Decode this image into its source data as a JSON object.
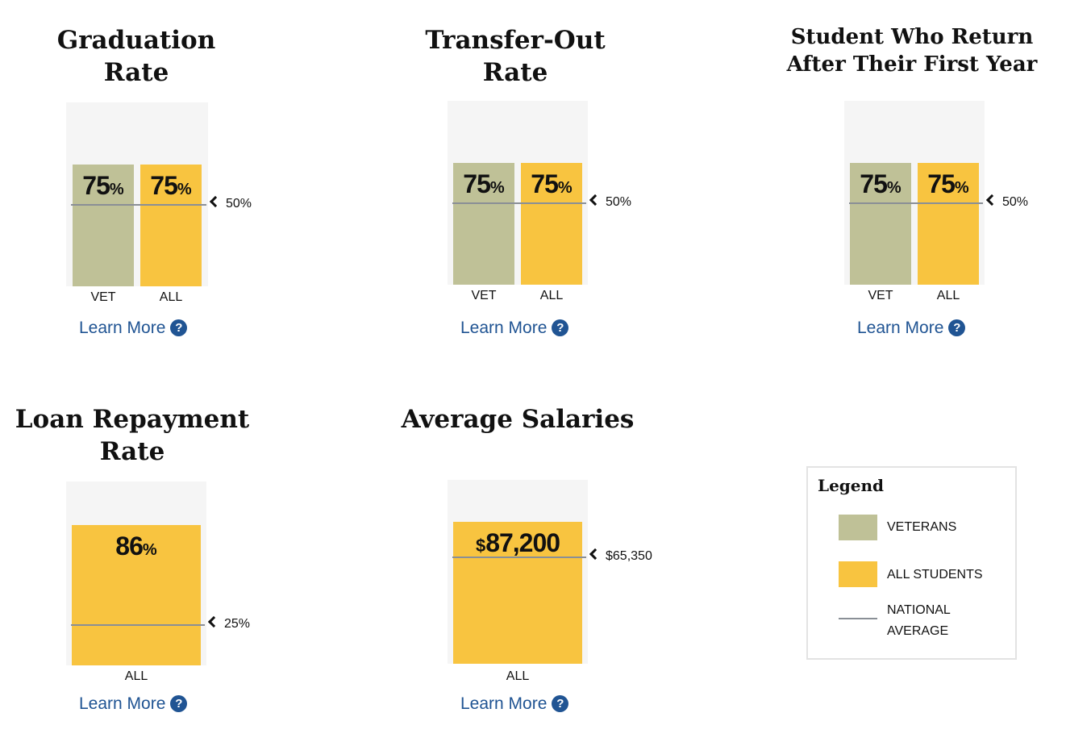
{
  "colors": {
    "veterans": "#bfc197",
    "all_students": "#f8c440",
    "national_average": "#8a8f96",
    "link": "#205493"
  },
  "chart_data": [
    {
      "type": "bar",
      "title": "Graduation Rate",
      "categories": [
        "VET",
        "ALL"
      ],
      "series": [
        {
          "values": [
            75,
            75
          ]
        }
      ],
      "value_labels": [
        "75",
        "75"
      ],
      "unit": "%",
      "ylim": [
        0,
        100
      ],
      "national_average": 50,
      "national_average_label": "50%",
      "link": "Learn More"
    },
    {
      "type": "bar",
      "title": "Transfer-Out Rate",
      "categories": [
        "VET",
        "ALL"
      ],
      "series": [
        {
          "values": [
            75,
            75
          ]
        }
      ],
      "value_labels": [
        "75",
        "75"
      ],
      "unit": "%",
      "ylim": [
        0,
        100
      ],
      "national_average": 50,
      "national_average_label": "50%",
      "link": "Learn More"
    },
    {
      "type": "bar",
      "title": "Student Who Return After Their First Year",
      "categories": [
        "VET",
        "ALL"
      ],
      "series": [
        {
          "values": [
            75,
            75
          ]
        }
      ],
      "value_labels": [
        "75",
        "75"
      ],
      "unit": "%",
      "ylim": [
        0,
        100
      ],
      "national_average": 50,
      "national_average_label": "50%",
      "link": "Learn More"
    },
    {
      "type": "bar",
      "title": "Loan Repayment Rate",
      "categories": [
        "ALL"
      ],
      "series": [
        {
          "values": [
            86
          ]
        }
      ],
      "value_labels": [
        "86"
      ],
      "unit": "%",
      "ylim": [
        0,
        100
      ],
      "national_average": 25,
      "national_average_label": "25%",
      "link": "Learn More"
    },
    {
      "type": "bar",
      "title": "Average Salaries",
      "categories": [
        "ALL"
      ],
      "series": [
        {
          "values": [
            87200
          ]
        }
      ],
      "value_labels": [
        "87,200"
      ],
      "prefix": "$",
      "unit": "",
      "ylim": [
        0,
        100000
      ],
      "national_average": 65350,
      "national_average_label": "$65,350",
      "link": "Learn More"
    }
  ],
  "legend": {
    "title": "Legend",
    "items": [
      {
        "label": "VETERANS",
        "type": "swatch",
        "color": "#bfc197"
      },
      {
        "label": "ALL STUDENTS",
        "type": "swatch",
        "color": "#f8c440"
      },
      {
        "label": "NATIONAL AVERAGE",
        "type": "line",
        "color": "#8a8f96"
      }
    ]
  }
}
